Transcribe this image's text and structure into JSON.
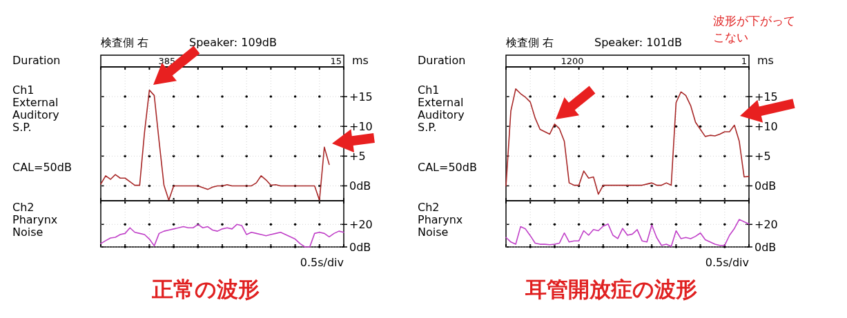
{
  "chart_data": [
    {
      "type": "line",
      "title": "検査側 右",
      "subtitle": "Speaker: 109dB",
      "ylabel": "Ch1 External Auditory S.P.",
      "annotations": [
        "Duration",
        "385",
        "15",
        "ms",
        "CAL=50dB"
      ],
      "categories": [
        null,
        null,
        null,
        null,
        null,
        null,
        null,
        null,
        null,
        null,
        null,
        null,
        null,
        null,
        null,
        null,
        null,
        null,
        null,
        null,
        null,
        null,
        null,
        null,
        null,
        null,
        null,
        null,
        null,
        null,
        null,
        null,
        null,
        null,
        null,
        null,
        null,
        null,
        null,
        null,
        null,
        null,
        null,
        null,
        null,
        null,
        null,
        null,
        null,
        null,
        null
      ],
      "series": [
        {
          "color": "#a82828",
          "values": [
            0.3,
            1.7,
            1.1,
            1.9,
            1.3,
            1.3,
            0.7,
            0.1,
            0.1,
            9,
            16.1,
            15.2,
            7.5,
            0.1,
            -2.4,
            0,
            0,
            0,
            0,
            0,
            0,
            -0.3,
            -0.6,
            -0.2,
            0,
            0,
            0.2,
            0,
            0,
            0,
            0,
            0,
            0.5,
            1.7,
            1,
            0.1,
            0.2,
            0,
            0,
            0,
            0,
            0,
            0,
            0,
            0,
            -2.4,
            6.5,
            3.6,
            null,
            null,
            null
          ]
        }
      ],
      "ylim": [
        -2.5,
        20
      ],
      "yticks": [
        {
          "value": 0,
          "label": "0dB"
        },
        {
          "value": 5,
          "label": "+5"
        },
        {
          "value": 10,
          "label": "+10"
        },
        {
          "value": 15,
          "label": "+15"
        }
      ],
      "grid": true,
      "tick_labels": "y"
    },
    {
      "type": "line",
      "ylabel": "Ch2 Pharynx Noise",
      "xlabel": "0.5s/div",
      "annotations": [
        "正常の波形"
      ],
      "categories": [
        null,
        null,
        null,
        null,
        null,
        null,
        null,
        null,
        null,
        null,
        null,
        null,
        null,
        null,
        null,
        null,
        null,
        null,
        null,
        null,
        null,
        null,
        null,
        null,
        null,
        null,
        null,
        null,
        null,
        null,
        null,
        null,
        null,
        null,
        null,
        null,
        null,
        null,
        null,
        null,
        null,
        null,
        null,
        null,
        null,
        null,
        null,
        null,
        null,
        null,
        null
      ],
      "series": [
        {
          "color": "#c040c8",
          "values": [
            3,
            5.6,
            8,
            8.6,
            11,
            12,
            17,
            13,
            12,
            11,
            7,
            1,
            12,
            14,
            15,
            16,
            17,
            18,
            17,
            17,
            20,
            17,
            18,
            15,
            14,
            16,
            17,
            16,
            20,
            19,
            11,
            13,
            12,
            11,
            10,
            11,
            12,
            13,
            11,
            9,
            7,
            3,
            0,
            0,
            12,
            13,
            12,
            9,
            12,
            14,
            13
          ]
        }
      ],
      "ylim": [
        0,
        41
      ],
      "yticks": [
        {
          "value": 0,
          "label": "0dB"
        },
        {
          "value": 20,
          "label": "+20"
        }
      ],
      "grid": true,
      "tick_labels": "y"
    },
    {
      "type": "line",
      "title": "検査側 右",
      "subtitle": "Speaker: 101dB",
      "ylabel": "Ch1 External Auditory S.P.",
      "annotations": [
        "Duration",
        "1200",
        "1",
        "ms",
        "CAL=50dB",
        "波形が下がって",
        "こない"
      ],
      "categories": [
        null,
        null,
        null,
        null,
        null,
        null,
        null,
        null,
        null,
        null,
        null,
        null,
        null,
        null,
        null,
        null,
        null,
        null,
        null,
        null,
        null,
        null,
        null,
        null,
        null,
        null,
        null,
        null,
        null,
        null,
        null,
        null,
        null,
        null,
        null,
        null,
        null,
        null,
        null,
        null,
        null,
        null,
        null,
        null,
        null,
        null,
        null,
        null,
        null,
        null,
        null
      ],
      "series": [
        {
          "color": "#a82828",
          "values": [
            0,
            12.6,
            16.3,
            15.5,
            14.9,
            14.1,
            11.4,
            9.5,
            9.1,
            8.7,
            10.4,
            9.6,
            7.5,
            0.5,
            0.1,
            0.1,
            2.5,
            1.3,
            1.5,
            -1.4,
            0.1,
            0.1,
            0.1,
            0.1,
            0.1,
            0.1,
            0.1,
            0.1,
            0.1,
            0.3,
            0.5,
            0.1,
            0.1,
            0.5,
            0.1,
            14,
            15.8,
            15.2,
            13.5,
            10.7,
            9.5,
            8.3,
            8.5,
            8.4,
            8.7,
            9.1,
            9.1,
            10.2,
            7.5,
            1.5,
            1.6
          ]
        }
      ],
      "ylim": [
        -2.5,
        20
      ],
      "yticks": [
        {
          "value": 0,
          "label": "0dB"
        },
        {
          "value": 5,
          "label": "+5"
        },
        {
          "value": 10,
          "label": "+10"
        },
        {
          "value": 15,
          "label": "+15"
        }
      ],
      "grid": true,
      "tick_labels": "y"
    },
    {
      "type": "line",
      "ylabel": "Ch2 Pharynx Noise",
      "xlabel": "0.5s/div",
      "annotations": [
        "耳管開放症の波形"
      ],
      "categories": [
        null,
        null,
        null,
        null,
        null,
        null,
        null,
        null,
        null,
        null,
        null,
        null,
        null,
        null,
        null,
        null,
        null,
        null,
        null,
        null,
        null,
        null,
        null,
        null,
        null,
        null,
        null,
        null,
        null,
        null,
        null,
        null,
        null,
        null,
        null,
        null,
        null,
        null,
        null,
        null,
        null,
        null,
        null,
        null,
        null,
        null,
        null,
        null,
        null,
        null,
        null
      ],
      "series": [
        {
          "color": "#c040c8",
          "values": [
            8.4,
            4.4,
            2.4,
            18,
            16,
            10,
            3.4,
            2.4,
            2.4,
            2,
            2.4,
            3.4,
            12.4,
            4.4,
            5.4,
            5.4,
            14.4,
            10.4,
            15.4,
            14.4,
            18.4,
            20.4,
            10.4,
            7.4,
            16.4,
            10.4,
            11.4,
            15.4,
            5.4,
            4.4,
            19.4,
            8.4,
            1.4,
            2.4,
            0.4,
            14.4,
            7.4,
            8.4,
            7.4,
            9.4,
            12.4,
            6.4,
            4.4,
            2.4,
            1.4,
            1.4,
            10.4,
            16.4,
            24.4,
            22.4,
            20.4
          ]
        }
      ],
      "ylim": [
        0,
        41
      ],
      "yticks": [
        {
          "value": 0,
          "label": "0dB"
        },
        {
          "value": 20,
          "label": "+20"
        }
      ],
      "grid": true,
      "tick_labels": "y"
    }
  ]
}
